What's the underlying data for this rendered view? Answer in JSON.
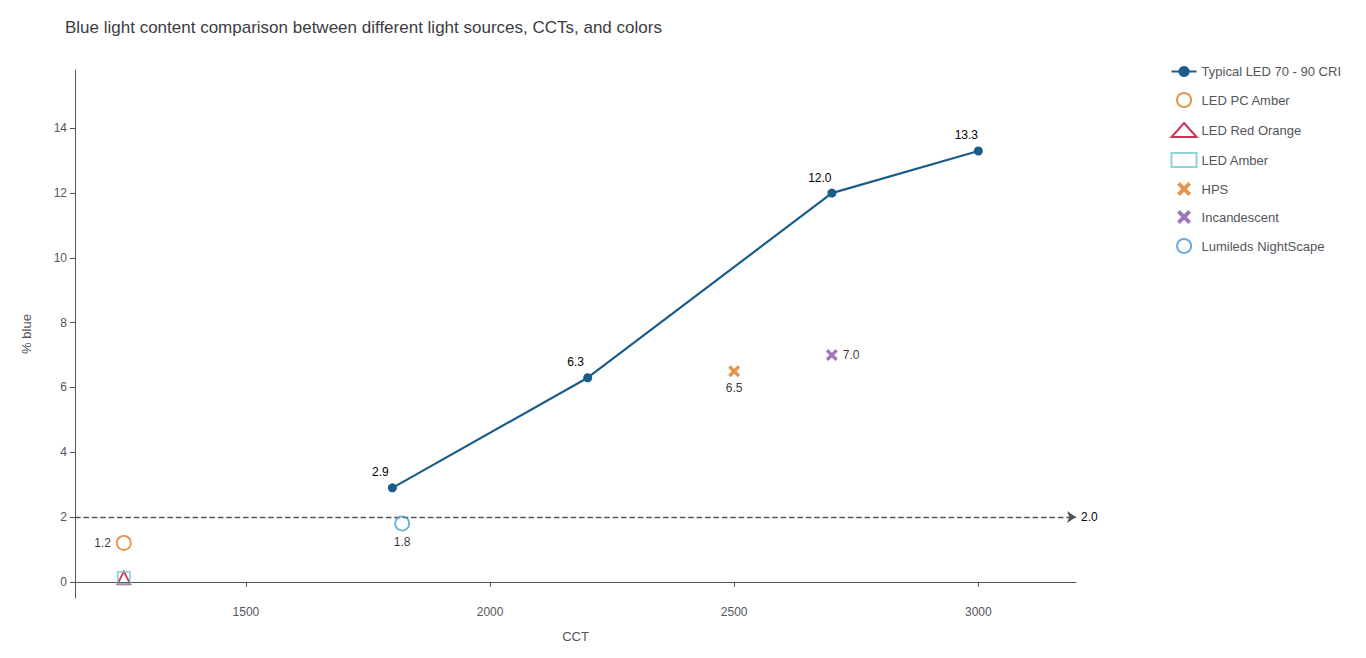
{
  "chart_data": {
    "type": "line",
    "title": "Blue light content comparison between different light sources, CCTs, and colors",
    "xlabel": "CCT",
    "ylabel": "% blue",
    "xlim": [
      1150,
      3200
    ],
    "xticks": [
      1500,
      2000,
      2500,
      3000
    ],
    "ylim": [
      -0.5,
      15.8
    ],
    "yticks": [
      0,
      2,
      4,
      6,
      8,
      10,
      12,
      14
    ],
    "grid": false,
    "legend": "right",
    "series": [
      {
        "name": "Typical LED 70 - 90 CRI",
        "type": "line",
        "color": "#1A5C8A",
        "marker": "circle",
        "line_style": "solid",
        "x": [
          1800,
          2200,
          2700,
          3000
        ],
        "values": [
          2.9,
          6.3,
          12.0,
          13.3
        ],
        "data_labels": true,
        "value_labels": [
          "2.9",
          "6.3",
          "12.0",
          "13.3"
        ]
      },
      {
        "name": "LED PC Amber",
        "type": "scatter",
        "color": "#E07820",
        "marker": "open-circle",
        "x": [
          1250
        ],
        "values": [
          1.2
        ],
        "data_labels": true,
        "value_labels": [
          "1.2"
        ]
      },
      {
        "name": "LED Red Orange",
        "type": "scatter",
        "color": "#C00030",
        "marker": "open-triangle",
        "x": [
          1250
        ],
        "values": [
          0.12
        ],
        "data_labels": false
      },
      {
        "name": "LED Amber",
        "type": "scatter",
        "color": "#70C8D0",
        "marker": "open-square",
        "x": [
          1250
        ],
        "values": [
          0.12
        ],
        "data_labels": false
      },
      {
        "name": "HPS",
        "type": "scatter",
        "color": "#E07820",
        "marker": "x",
        "x": [
          2500
        ],
        "values": [
          6.5
        ],
        "data_labels": true,
        "value_labels": [
          "6.5"
        ]
      },
      {
        "name": "Incandescent",
        "type": "scatter",
        "color": "#8855AA",
        "marker": "x",
        "x": [
          2700
        ],
        "values": [
          7.0
        ],
        "data_labels": true,
        "value_labels": [
          "7.0"
        ]
      },
      {
        "name": "Lumileds NightScape",
        "type": "scatter",
        "color": "#4499CC",
        "marker": "open-circle",
        "x": [
          1820
        ],
        "values": [
          1.8
        ],
        "data_labels": true,
        "value_labels": [
          "1.8"
        ]
      }
    ],
    "hline": {
      "y": 2.0,
      "label": "2.0",
      "color": "#555555",
      "line_style": "dashed"
    }
  }
}
